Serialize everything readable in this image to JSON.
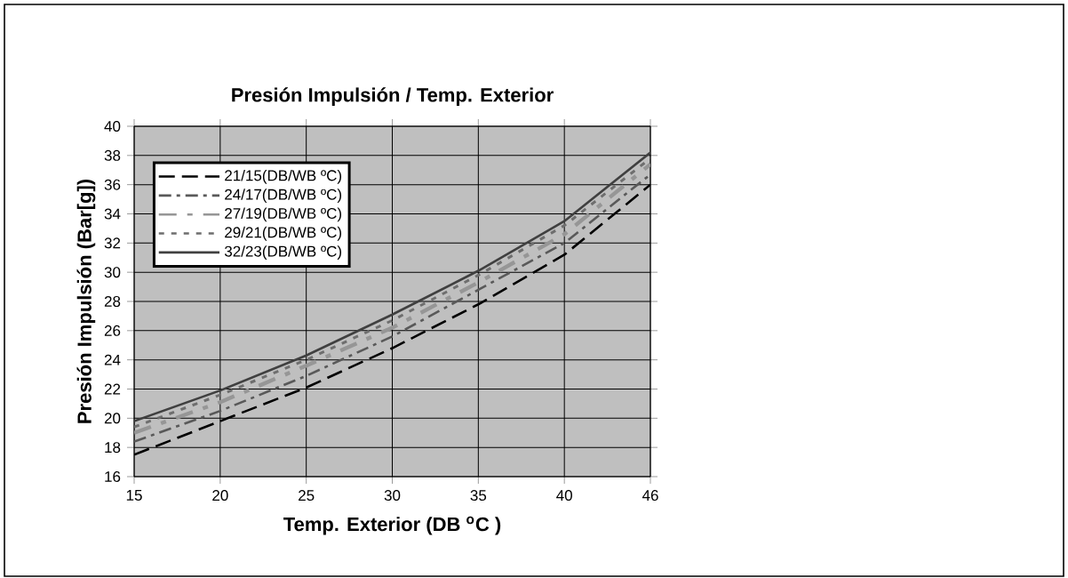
{
  "chart_data": {
    "type": "line",
    "title": "**Presión Impulsión / Temp. Exterior**",
    "xlabel": "**Temp. Exterior (DB $^{o}$C )**",
    "ylabel": "**Presión Impulsión (Bar[g])**",
    "categories": [
      "15",
      "20",
      "25",
      "30",
      "35",
      "40",
      "46"
    ],
    "series": [
      {
        "name": "21/15(DB/WB ºC)",
        "color": "#000000",
        "line_style": "dashed",
        "values": [
          17.5,
          19.8,
          22.1,
          24.8,
          27.8,
          31.2,
          36.0
        ]
      },
      {
        "name": "24/17(DB/WB ºC)",
        "color": "#595959",
        "line_style": "dashed",
        "values": [
          18.4,
          20.5,
          22.9,
          25.6,
          28.8,
          32.0,
          36.7
        ]
      },
      {
        "name": "27/19(DB/WB ºC)",
        "color": "#969696",
        "line_style": "dashed",
        "values": [
          19.0,
          21.1,
          23.6,
          26.2,
          29.3,
          32.6,
          37.4
        ]
      },
      {
        "name": "29/21(DB/WB ºC)",
        "color": "#6e6e6e",
        "line_style": "dotted",
        "values": [
          19.4,
          21.6,
          24.0,
          26.7,
          29.8,
          33.2,
          37.8
        ]
      },
      {
        "name": "32/23(DB/WB ºC)",
        "color": "#404040",
        "line_style": "solid",
        "values": [
          19.8,
          21.9,
          24.3,
          27.1,
          30.1,
          33.5,
          38.2
        ]
      }
    ],
    "ylim": [
      16,
      40
    ],
    "yticks": [
      16,
      18,
      20,
      22,
      24,
      26,
      28,
      30,
      32,
      34,
      36,
      38,
      40
    ],
    "grid": true,
    "legend": "top left"
  }
}
